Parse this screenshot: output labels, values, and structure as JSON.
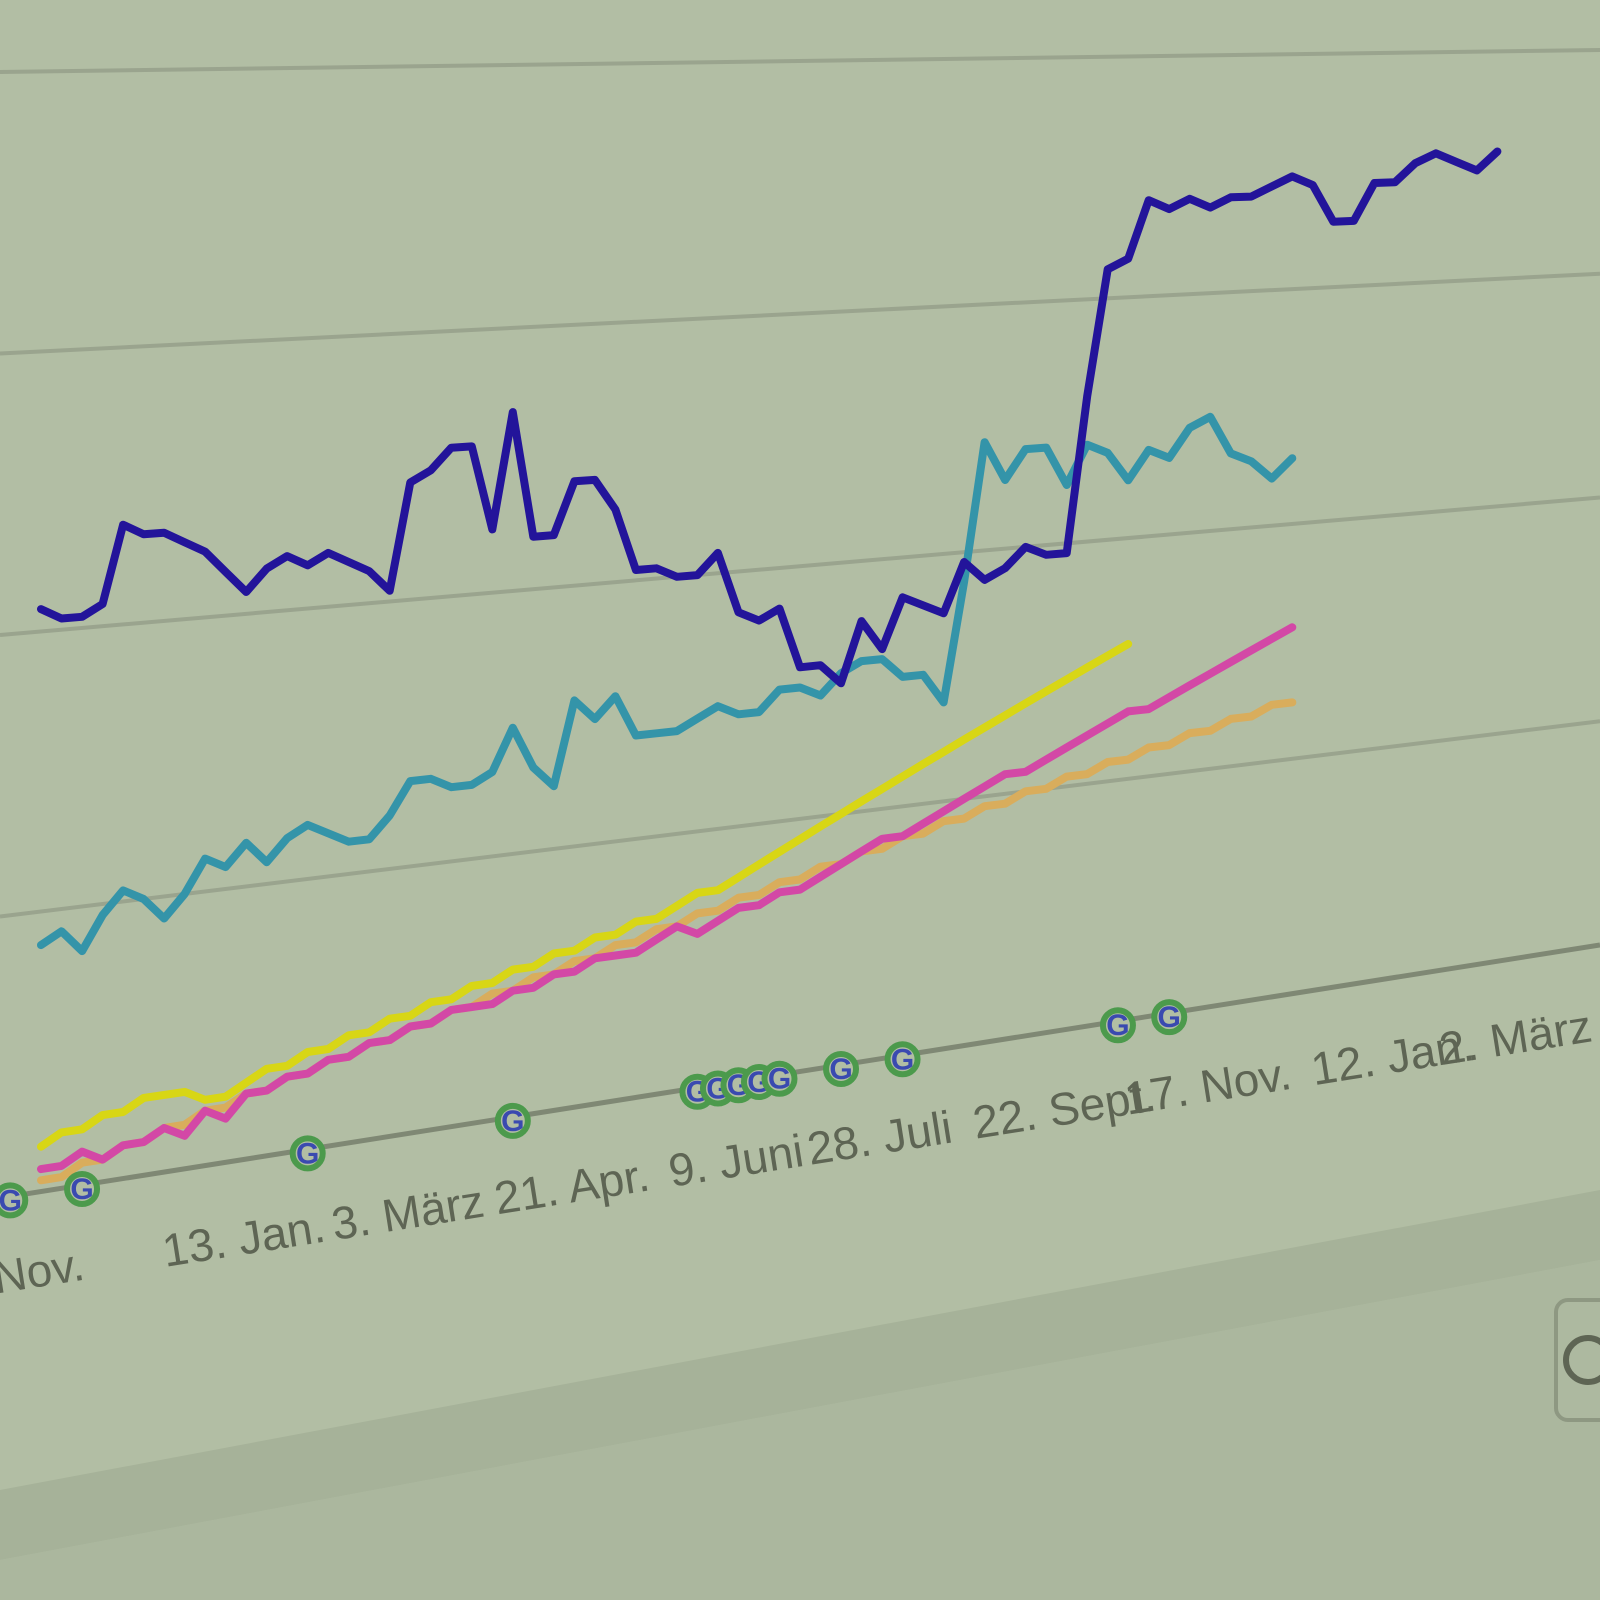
{
  "chart_data": {
    "type": "line",
    "title": "",
    "xlabel": "",
    "ylabel": "",
    "grid": true,
    "x_tick_labels": [
      "Nov.",
      "13. Jan.",
      "3. März",
      "21. Apr.",
      "9. Juni",
      "28. Juli",
      "22. Sept.",
      "17. Nov.",
      "12. Jan.",
      "2. März"
    ],
    "x_tick_positions": [
      0,
      10,
      18,
      26,
      34,
      41,
      50,
      57,
      66,
      72
    ],
    "x_range": [
      -2,
      76
    ],
    "ylim": [
      0,
      100
    ],
    "series": [
      {
        "color": "#23149a",
        "values": [
          52,
          51,
          51,
          52,
          59,
          58,
          58,
          57,
          56,
          54,
          52,
          54,
          55,
          54,
          55,
          54,
          53,
          51,
          61,
          62,
          64,
          64,
          56,
          67,
          55,
          55,
          60,
          60,
          57,
          51,
          51,
          50,
          50,
          52,
          46,
          45,
          46,
          40,
          40,
          38,
          44,
          41,
          46,
          45,
          44,
          49,
          47,
          48,
          50,
          49,
          49,
          65,
          78,
          79,
          85,
          84,
          85,
          84,
          85,
          85,
          86,
          87,
          86,
          82,
          82,
          86,
          86,
          88,
          89,
          88,
          87,
          89
        ]
      },
      {
        "color": "#3494a9",
        "values": [
          22,
          23,
          21,
          24,
          26,
          25,
          23,
          25,
          28,
          27,
          29,
          27,
          29,
          30,
          29,
          28,
          28,
          30,
          33,
          33,
          32,
          32,
          33,
          37,
          33,
          31,
          39,
          37,
          39,
          35,
          35,
          35,
          36,
          37,
          36,
          36,
          38,
          38,
          37,
          39,
          40,
          40,
          38,
          38,
          35,
          47,
          61,
          57,
          60,
          60,
          56,
          60,
          59,
          56,
          59,
          58,
          61,
          62,
          58,
          57,
          55,
          57
        ]
      },
      {
        "color": "#d348a6",
        "values": [
          2,
          2,
          3,
          2,
          3,
          3,
          4,
          3,
          5,
          4,
          6,
          6,
          7,
          7,
          8,
          8,
          9,
          9,
          10,
          10,
          11,
          11,
          11,
          12,
          12,
          13,
          13,
          14,
          14,
          14,
          15,
          16,
          15,
          16,
          17,
          17,
          18,
          18,
          19,
          20,
          21,
          22,
          22,
          23,
          24,
          25,
          26,
          27,
          27,
          28,
          29,
          30,
          31,
          32,
          32,
          33,
          34,
          35,
          36,
          37,
          38,
          39
        ]
      },
      {
        "color": "#d8d615",
        "values": [
          4,
          5,
          5,
          6,
          6,
          7,
          7,
          7,
          6,
          6,
          7,
          8,
          8,
          9,
          9,
          10,
          10,
          11,
          11,
          12,
          12,
          13,
          13,
          14,
          14,
          15,
          15,
          16,
          16,
          17,
          17,
          18,
          19,
          19,
          20,
          21,
          22,
          23,
          24,
          25,
          26,
          27,
          28,
          29,
          30,
          31,
          32,
          33,
          34,
          35,
          36,
          37,
          38,
          39
        ]
      },
      {
        "color": "#d9ad5c",
        "values": [
          1,
          1,
          2,
          2,
          3,
          3,
          4,
          4,
          5,
          5,
          6,
          6,
          7,
          7,
          8,
          8,
          9,
          9,
          10,
          10,
          11,
          11,
          12,
          12,
          13,
          13,
          14,
          14,
          15,
          15,
          16,
          16,
          17,
          17,
          18,
          18,
          19,
          19,
          20,
          20,
          21,
          21,
          22,
          22,
          23,
          23,
          24,
          24,
          25,
          25,
          26,
          26,
          27,
          27,
          28,
          28,
          29,
          29,
          30,
          30,
          31,
          31
        ]
      }
    ],
    "annotation_markers": {
      "label": "G",
      "x": [
        -1.5,
        2,
        13,
        23,
        32,
        33,
        34,
        35,
        36,
        39,
        42,
        52.5,
        55
      ]
    }
  }
}
